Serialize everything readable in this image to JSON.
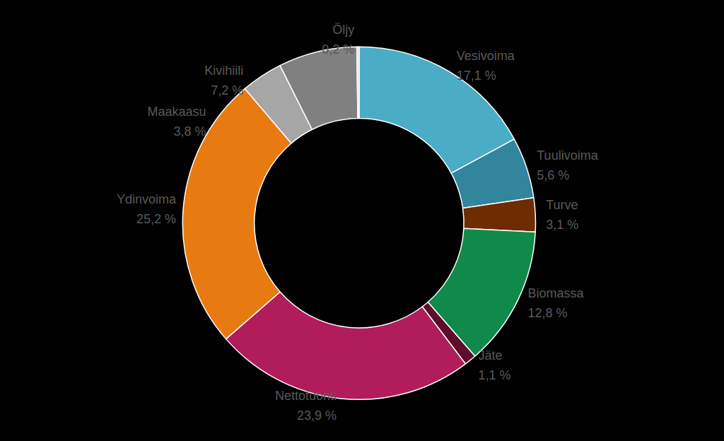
{
  "chart_data": {
    "type": "pie",
    "categories": [
      "Vesivoima",
      "Tuulivoima",
      "Turve",
      "Biomassa",
      "Jäte",
      "Nettotuonti",
      "Ydinvoima",
      "Maakaasu",
      "Kivihiili",
      "Öljy"
    ],
    "values": [
      17.1,
      5.6,
      3.1,
      12.8,
      1.1,
      23.9,
      25.2,
      3.8,
      7.2,
      0.2
    ],
    "value_labels": [
      "17,1 %",
      "5,6 %",
      "3,1 %",
      "12,8 %",
      "1,1 %",
      "23,9 %",
      "25,2 %",
      "3,8 %",
      "7,2 %",
      "0,2 %"
    ],
    "colors": [
      "#4bacc6",
      "#31859c",
      "#6e2c00",
      "#108a4a",
      "#5c0f2a",
      "#b01d5a",
      "#e87a12",
      "#a6a6a6",
      "#808080",
      "#d9d9d9"
    ],
    "data_labels": true
  }
}
